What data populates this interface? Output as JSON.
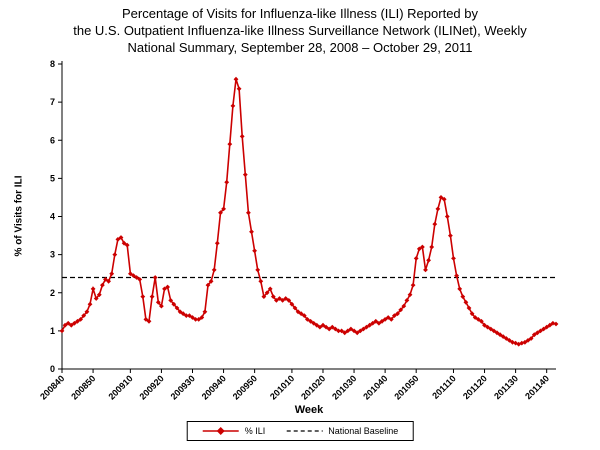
{
  "title": {
    "line1": "Percentage of Visits for Influenza-like Illness (ILI) Reported by",
    "line2": "the U.S. Outpatient Influenza-like Illness Surveillance Network (ILINet), Weekly",
    "line3": "National Summary, September 28, 2008 – October 29, 2011"
  },
  "chart_data": {
    "type": "line",
    "title": "Percentage of Visits for Influenza-like Illness (ILI) Reported by the U.S. Outpatient Influenza-like Illness Surveillance Network (ILINet), Weekly National Summary, September 28, 2008 – October 29, 2011",
    "xlabel": "Week",
    "ylabel": "% of Visits for ILI",
    "ylim": [
      0,
      8
    ],
    "grid": false,
    "legend_position": "bottom",
    "x_ticks": [
      "200840",
      "200850",
      "200910",
      "200920",
      "200930",
      "200940",
      "200950",
      "201010",
      "201020",
      "201030",
      "201040",
      "201050",
      "201110",
      "201120",
      "201130",
      "201140"
    ],
    "x": [
      "200840",
      "200841",
      "200842",
      "200843",
      "200844",
      "200845",
      "200846",
      "200847",
      "200848",
      "200849",
      "200850",
      "200851",
      "200852",
      "200901",
      "200902",
      "200903",
      "200904",
      "200905",
      "200906",
      "200907",
      "200908",
      "200909",
      "200910",
      "200911",
      "200912",
      "200913",
      "200914",
      "200915",
      "200916",
      "200917",
      "200918",
      "200919",
      "200920",
      "200921",
      "200922",
      "200923",
      "200924",
      "200925",
      "200926",
      "200927",
      "200928",
      "200929",
      "200930",
      "200931",
      "200932",
      "200933",
      "200934",
      "200935",
      "200936",
      "200937",
      "200938",
      "200939",
      "200940",
      "200941",
      "200942",
      "200943",
      "200944",
      "200945",
      "200946",
      "200947",
      "200948",
      "200949",
      "200950",
      "200951",
      "200952",
      "201001",
      "201002",
      "201003",
      "201004",
      "201005",
      "201006",
      "201007",
      "201008",
      "201009",
      "201010",
      "201011",
      "201012",
      "201013",
      "201014",
      "201015",
      "201016",
      "201017",
      "201018",
      "201019",
      "201020",
      "201021",
      "201022",
      "201023",
      "201024",
      "201025",
      "201026",
      "201027",
      "201028",
      "201029",
      "201030",
      "201031",
      "201032",
      "201033",
      "201034",
      "201035",
      "201036",
      "201037",
      "201038",
      "201039",
      "201040",
      "201041",
      "201042",
      "201043",
      "201044",
      "201045",
      "201046",
      "201047",
      "201048",
      "201049",
      "201050",
      "201051",
      "201052",
      "201101",
      "201102",
      "201103",
      "201104",
      "201105",
      "201106",
      "201107",
      "201108",
      "201109",
      "201110",
      "201111",
      "201112",
      "201113",
      "201114",
      "201115",
      "201116",
      "201117",
      "201118",
      "201119",
      "201120",
      "201121",
      "201122",
      "201123",
      "201124",
      "201125",
      "201126",
      "201127",
      "201128",
      "201129",
      "201130",
      "201131",
      "201132",
      "201133",
      "201134",
      "201135",
      "201136",
      "201137",
      "201138",
      "201139",
      "201140",
      "201141",
      "201142",
      "201143"
    ],
    "series": [
      {
        "name": "% ILI",
        "color": "#CC0000",
        "marker": "diamond",
        "values": [
          1.0,
          1.15,
          1.2,
          1.15,
          1.2,
          1.25,
          1.3,
          1.4,
          1.5,
          1.7,
          2.1,
          1.85,
          1.95,
          2.2,
          2.35,
          2.3,
          2.5,
          3.0,
          3.4,
          3.45,
          3.3,
          3.25,
          2.5,
          2.45,
          2.4,
          2.35,
          1.9,
          1.3,
          1.25,
          1.9,
          2.4,
          1.75,
          1.65,
          2.1,
          2.15,
          1.8,
          1.7,
          1.6,
          1.5,
          1.45,
          1.4,
          1.4,
          1.35,
          1.3,
          1.3,
          1.35,
          1.5,
          2.2,
          2.3,
          2.6,
          3.3,
          4.1,
          4.2,
          4.9,
          5.9,
          6.9,
          7.6,
          7.35,
          6.1,
          5.1,
          4.1,
          3.6,
          3.1,
          2.6,
          2.3,
          1.9,
          2.0,
          2.1,
          1.9,
          1.8,
          1.85,
          1.8,
          1.85,
          1.8,
          1.7,
          1.6,
          1.5,
          1.45,
          1.4,
          1.3,
          1.25,
          1.2,
          1.15,
          1.1,
          1.15,
          1.1,
          1.05,
          1.1,
          1.05,
          1.0,
          1.0,
          0.95,
          1.0,
          1.05,
          1.0,
          0.95,
          1.0,
          1.05,
          1.1,
          1.15,
          1.2,
          1.25,
          1.2,
          1.25,
          1.3,
          1.35,
          1.3,
          1.4,
          1.45,
          1.55,
          1.65,
          1.8,
          1.95,
          2.2,
          2.9,
          3.15,
          3.2,
          2.6,
          2.85,
          3.2,
          3.8,
          4.2,
          4.5,
          4.45,
          4.0,
          3.5,
          2.9,
          2.45,
          2.1,
          1.9,
          1.75,
          1.6,
          1.45,
          1.35,
          1.3,
          1.25,
          1.15,
          1.1,
          1.05,
          1.0,
          0.95,
          0.9,
          0.85,
          0.8,
          0.75,
          0.7,
          0.68,
          0.65,
          0.68,
          0.7,
          0.75,
          0.8,
          0.9,
          0.95,
          1.0,
          1.05,
          1.1,
          1.15,
          1.2,
          1.18
        ]
      },
      {
        "name": "National Baseline",
        "color": "#000000",
        "style": "dashed",
        "value": 2.4
      }
    ]
  }
}
